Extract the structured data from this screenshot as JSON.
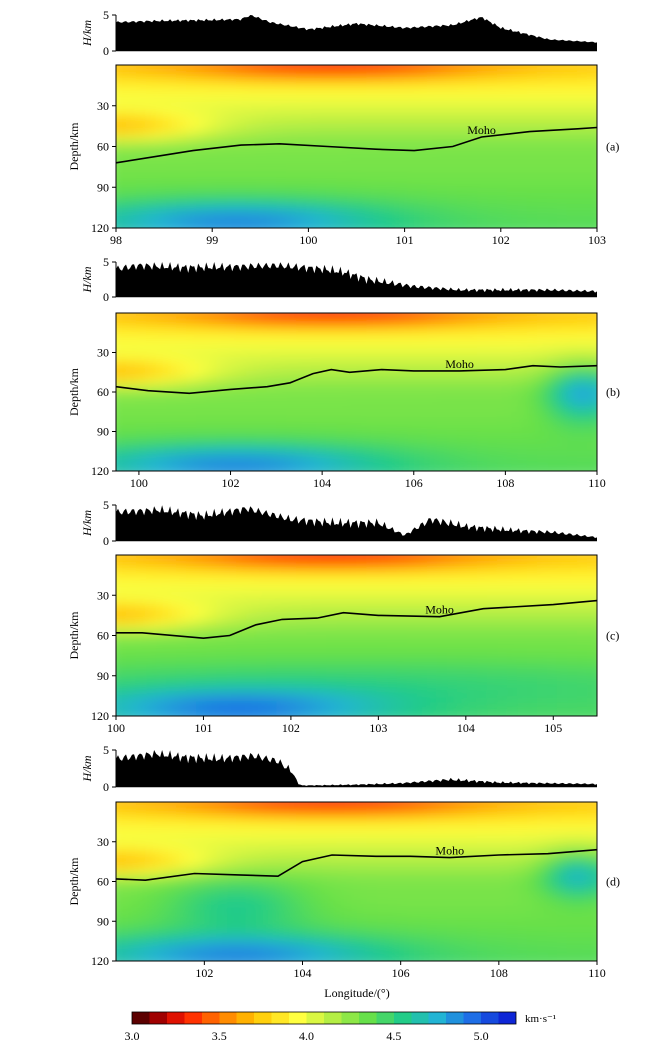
{
  "figure": {
    "xlabel": "Longitude/(°)",
    "colorbar": {
      "unit": "km·s⁻¹",
      "min": 3.0,
      "max": 5.2,
      "ticks": [
        "3.0",
        "3.5",
        "4.0",
        "4.5",
        "5.0"
      ],
      "stops": [
        {
          "v": 3.0,
          "c": "#3a0000"
        },
        {
          "v": 3.15,
          "c": "#a00000"
        },
        {
          "v": 3.3,
          "c": "#ff1a00"
        },
        {
          "v": 3.5,
          "c": "#ff7a00"
        },
        {
          "v": 3.7,
          "c": "#ffc400"
        },
        {
          "v": 3.95,
          "c": "#ffff40"
        },
        {
          "v": 4.15,
          "c": "#b4ee44"
        },
        {
          "v": 4.35,
          "c": "#66e04a"
        },
        {
          "v": 4.55,
          "c": "#22cc88"
        },
        {
          "v": 4.75,
          "c": "#22b4d4"
        },
        {
          "v": 4.95,
          "c": "#1e6ee6"
        },
        {
          "v": 5.2,
          "c": "#0a14d2"
        }
      ]
    }
  },
  "chart_data": [
    {
      "type": "heatmap",
      "panel_label": "(a)",
      "xlim": [
        98,
        103
      ],
      "xticks": [
        98,
        99,
        100,
        101,
        102,
        103
      ],
      "depth_ticks": [
        30,
        60,
        90,
        120
      ],
      "ylabel": "Depth/km",
      "topo_label": "H/km",
      "topo_ticks": [
        0,
        5
      ],
      "topography": {
        "x": [
          98,
          98.5,
          99,
          99.3,
          99.4,
          99.6,
          100,
          100.5,
          101,
          101.5,
          101.8,
          102,
          102.5,
          103
        ],
        "h": [
          4.0,
          4.2,
          4.3,
          4.4,
          5.0,
          4.0,
          3.0,
          3.8,
          3.2,
          3.6,
          4.7,
          3.2,
          1.6,
          1.2
        ]
      },
      "moho_label": "Moho",
      "moho": {
        "x": [
          98,
          98.8,
          99.3,
          99.7,
          100.2,
          100.7,
          101.1,
          101.5,
          101.8,
          102.3,
          102.8,
          103
        ],
        "depth": [
          72,
          63,
          59,
          58,
          60,
          62,
          63,
          60,
          53,
          49,
          47,
          46
        ]
      }
    },
    {
      "type": "heatmap",
      "panel_label": "(b)",
      "xlim": [
        99.5,
        110
      ],
      "xticks": [
        100,
        102,
        104,
        106,
        108,
        110
      ],
      "depth_ticks": [
        30,
        60,
        90,
        120
      ],
      "ylabel": "Depth/km",
      "topo_label": "H/km",
      "topo_ticks": [
        0,
        5
      ],
      "topography": {
        "x": [
          99.5,
          100,
          101,
          102,
          103,
          104,
          104.5,
          105,
          105.5,
          106,
          107,
          108,
          109,
          110
        ],
        "h": [
          4.0,
          4.5,
          4.2,
          4.3,
          4.5,
          4.0,
          3.5,
          2.5,
          2.0,
          1.5,
          1.0,
          1.0,
          1.0,
          0.8
        ]
      },
      "moho_label": "Moho",
      "moho": {
        "x": [
          99.5,
          100.2,
          101.1,
          102,
          102.8,
          103.3,
          103.8,
          104.2,
          104.6,
          105.3,
          106,
          107,
          108,
          108.6,
          109.2,
          110
        ],
        "depth": [
          56,
          59,
          61,
          58,
          56,
          53,
          46,
          43,
          45,
          43,
          44,
          44,
          43,
          40,
          41,
          40
        ]
      }
    },
    {
      "type": "heatmap",
      "panel_label": "(c)",
      "xlim": [
        100,
        105.5
      ],
      "xticks": [
        100,
        101,
        102,
        103,
        104,
        105
      ],
      "depth_ticks": [
        30,
        60,
        90,
        120
      ],
      "ylabel": "Depth/km",
      "topo_label": "H/km",
      "topo_ticks": [
        0,
        5
      ],
      "topography": {
        "x": [
          100,
          100.5,
          101,
          101.5,
          102,
          102.5,
          103,
          103.3,
          103.6,
          104,
          104.5,
          105,
          105.5
        ],
        "h": [
          4.0,
          4.3,
          3.5,
          4.5,
          3.0,
          2.5,
          2.5,
          0.8,
          3.0,
          2.0,
          1.5,
          1.2,
          0.5
        ]
      },
      "moho_label": "Moho",
      "moho": {
        "x": [
          100,
          100.3,
          101,
          101.3,
          101.6,
          101.9,
          102.3,
          102.6,
          103,
          103.7,
          104.2,
          105,
          105.5
        ],
        "depth": [
          58,
          58,
          62,
          60,
          52,
          48,
          47,
          43,
          45,
          46,
          40,
          37,
          34
        ]
      }
    },
    {
      "type": "heatmap",
      "panel_label": "(d)",
      "xlim": [
        100.2,
        110
      ],
      "xticks": [
        102,
        104,
        106,
        108,
        110
      ],
      "depth_ticks": [
        30,
        60,
        90,
        120
      ],
      "ylabel": "Depth/km",
      "topo_label": "H/km",
      "topo_ticks": [
        0,
        5
      ],
      "topography": {
        "x": [
          100.2,
          101,
          101.6,
          102.3,
          103,
          103.5,
          103.8,
          103.9,
          104,
          105,
          106,
          107,
          108,
          109,
          110
        ],
        "h": [
          3.8,
          4.5,
          4.0,
          3.8,
          4.2,
          3.5,
          2.0,
          0.5,
          0.2,
          0.3,
          0.5,
          1.0,
          0.6,
          0.5,
          0.4
        ]
      },
      "moho_label": "Moho",
      "moho": {
        "x": [
          100.2,
          100.8,
          101.8,
          102.7,
          103.5,
          104,
          104.6,
          105.5,
          106.2,
          107,
          108,
          109,
          110
        ],
        "depth": [
          58,
          59,
          54,
          55,
          56,
          45,
          40,
          41,
          41,
          42,
          40,
          39,
          36
        ]
      }
    }
  ]
}
